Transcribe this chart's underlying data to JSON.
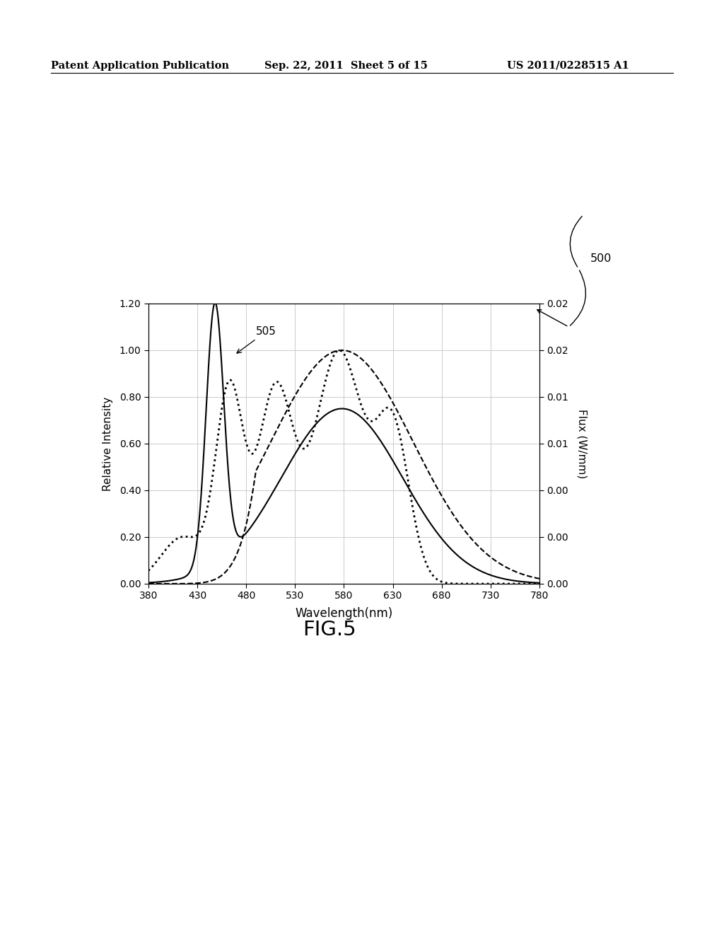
{
  "header_left": "Patent Application Publication",
  "header_mid": "Sep. 22, 2011  Sheet 5 of 15",
  "header_right": "US 2011/0228515 A1",
  "xlabel": "Wavelength(nm)",
  "ylabel_left": "Relative Intensity",
  "ylabel_right": "Flux (W/mm)",
  "fig_label": "FIG.5",
  "annotation_505": "505",
  "annotation_500": "500",
  "xlim": [
    380,
    780
  ],
  "ylim_left": [
    0.0,
    1.2
  ],
  "ylim_right": [
    0.0,
    0.02
  ],
  "xticks": [
    380,
    430,
    480,
    530,
    580,
    630,
    680,
    730,
    780
  ],
  "yticks_left": [
    0.0,
    0.2,
    0.4,
    0.6,
    0.8,
    1.0,
    1.2
  ],
  "yticks_right_labels": [
    "0.00",
    "0.00",
    "0.00",
    "0.01",
    "0.01",
    "0.02",
    "0.02"
  ],
  "background_color": "#ffffff",
  "grid_color": "#cccccc",
  "text_color": "#000000"
}
